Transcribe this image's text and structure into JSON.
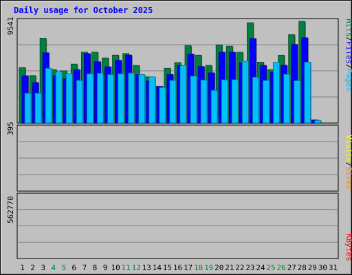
{
  "chart_data": [
    {
      "type": "bar",
      "title": "Daily usage for October 2025",
      "ylabel_parts": [
        "Pages",
        "/",
        "Files",
        "/",
        "Hits"
      ],
      "ymax_label": "9541",
      "ylim": [
        0,
        9541
      ],
      "categories": [
        "1",
        "2",
        "3",
        "4",
        "5",
        "6",
        "7",
        "8",
        "9",
        "10",
        "11",
        "12",
        "13",
        "14",
        "15",
        "16",
        "17",
        "18",
        "19",
        "20",
        "21",
        "22",
        "23",
        "24",
        "25",
        "26",
        "27",
        "28",
        "29",
        "30",
        "31"
      ],
      "weekend_days": [
        "4",
        "5",
        "11",
        "12",
        "18",
        "19",
        "25",
        "26"
      ],
      "grid": true,
      "series": [
        {
          "name": "Hits",
          "color": "#008040",
          "values": [
            5200,
            4460,
            7960,
            5010,
            4900,
            5530,
            6650,
            6650,
            6110,
            6370,
            6520,
            5400,
            4330,
            3440,
            5140,
            5670,
            7270,
            6370,
            5410,
            7330,
            7210,
            6640,
            9410,
            5710,
            5000,
            6360,
            8290,
            9541,
            300,
            0,
            0
          ]
        },
        {
          "name": "Files",
          "color": "#0000ff",
          "values": [
            4440,
            3800,
            6590,
            4440,
            4150,
            5010,
            6510,
            5750,
            5280,
            5880,
            6370,
            4550,
            3930,
            3440,
            4560,
            5400,
            6470,
            5300,
            4710,
            6650,
            6650,
            5670,
            7930,
            5410,
            4770,
            5420,
            7370,
            8000,
            300,
            0,
            0
          ]
        },
        {
          "name": "Pages",
          "color": "#00bfff",
          "values": [
            2800,
            2800,
            5140,
            4810,
            4640,
            4000,
            4620,
            4670,
            4550,
            4620,
            4700,
            4550,
            4330,
            3340,
            4000,
            5400,
            4400,
            4040,
            3070,
            4060,
            4070,
            5800,
            4300,
            4000,
            5700,
            4580,
            3980,
            5710,
            250,
            0,
            0
          ]
        }
      ]
    },
    {
      "type": "bar",
      "ylabel_parts": [
        "Sites",
        "/",
        "Visits"
      ],
      "ymax_label": "395",
      "ylim": [
        0,
        395
      ],
      "grid": true,
      "series": [
        {
          "name": "Visits",
          "color": "#ff8000",
          "values": [
            0,
            0,
            0,
            0,
            0,
            0,
            0,
            0,
            0,
            0,
            0,
            0,
            0,
            0,
            0,
            0,
            0,
            0,
            0,
            0,
            0,
            0,
            0,
            0,
            0,
            0,
            0,
            0,
            0,
            0,
            0
          ]
        },
        {
          "name": "Sites",
          "color": "#ffff00",
          "values": [
            0,
            0,
            0,
            0,
            0,
            0,
            0,
            0,
            0,
            0,
            0,
            0,
            0,
            0,
            0,
            0,
            0,
            0,
            0,
            0,
            0,
            0,
            0,
            0,
            0,
            0,
            0,
            0,
            0,
            0,
            0
          ]
        }
      ]
    },
    {
      "type": "bar",
      "ylabel_parts": [
        "KBytes"
      ],
      "ymax_label": "562770",
      "ylim": [
        0,
        562770
      ],
      "grid": true,
      "series": [
        {
          "name": "KBytes",
          "color": "#ff0000",
          "values": [
            0,
            0,
            0,
            0,
            0,
            0,
            0,
            0,
            0,
            0,
            0,
            0,
            0,
            0,
            0,
            0,
            0,
            0,
            0,
            0,
            0,
            0,
            0,
            0,
            0,
            0,
            0,
            0,
            0,
            0,
            0
          ]
        }
      ]
    }
  ]
}
